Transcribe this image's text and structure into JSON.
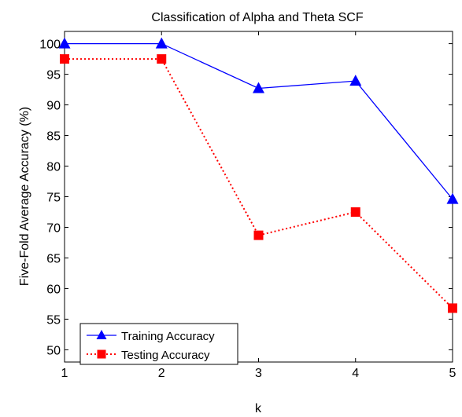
{
  "chart_data": {
    "type": "line",
    "title": "Classification of Alpha and Theta SCF",
    "xlabel": "k",
    "ylabel": "Five-Fold Average Accuracy (%)",
    "x": [
      1,
      2,
      3,
      4,
      5
    ],
    "xticks": [
      "1",
      "2",
      "3",
      "4",
      "5"
    ],
    "xlim": [
      1,
      5
    ],
    "yticks": [
      "50",
      "55",
      "60",
      "65",
      "70",
      "75",
      "80",
      "85",
      "90",
      "95",
      "100"
    ],
    "ylim": [
      48,
      102
    ],
    "grid": false,
    "legend_position": "bottom-left",
    "series": [
      {
        "name": "Training Accuracy",
        "values": [
          100,
          100,
          92.7,
          93.9,
          74.6
        ],
        "color": "#0000ff",
        "line_style": "solid",
        "marker": "triangle"
      },
      {
        "name": "Testing Accuracy",
        "values": [
          97.5,
          97.5,
          68.7,
          72.5,
          56.8
        ],
        "color": "#ff0000",
        "line_style": "dotted",
        "marker": "square"
      }
    ]
  }
}
